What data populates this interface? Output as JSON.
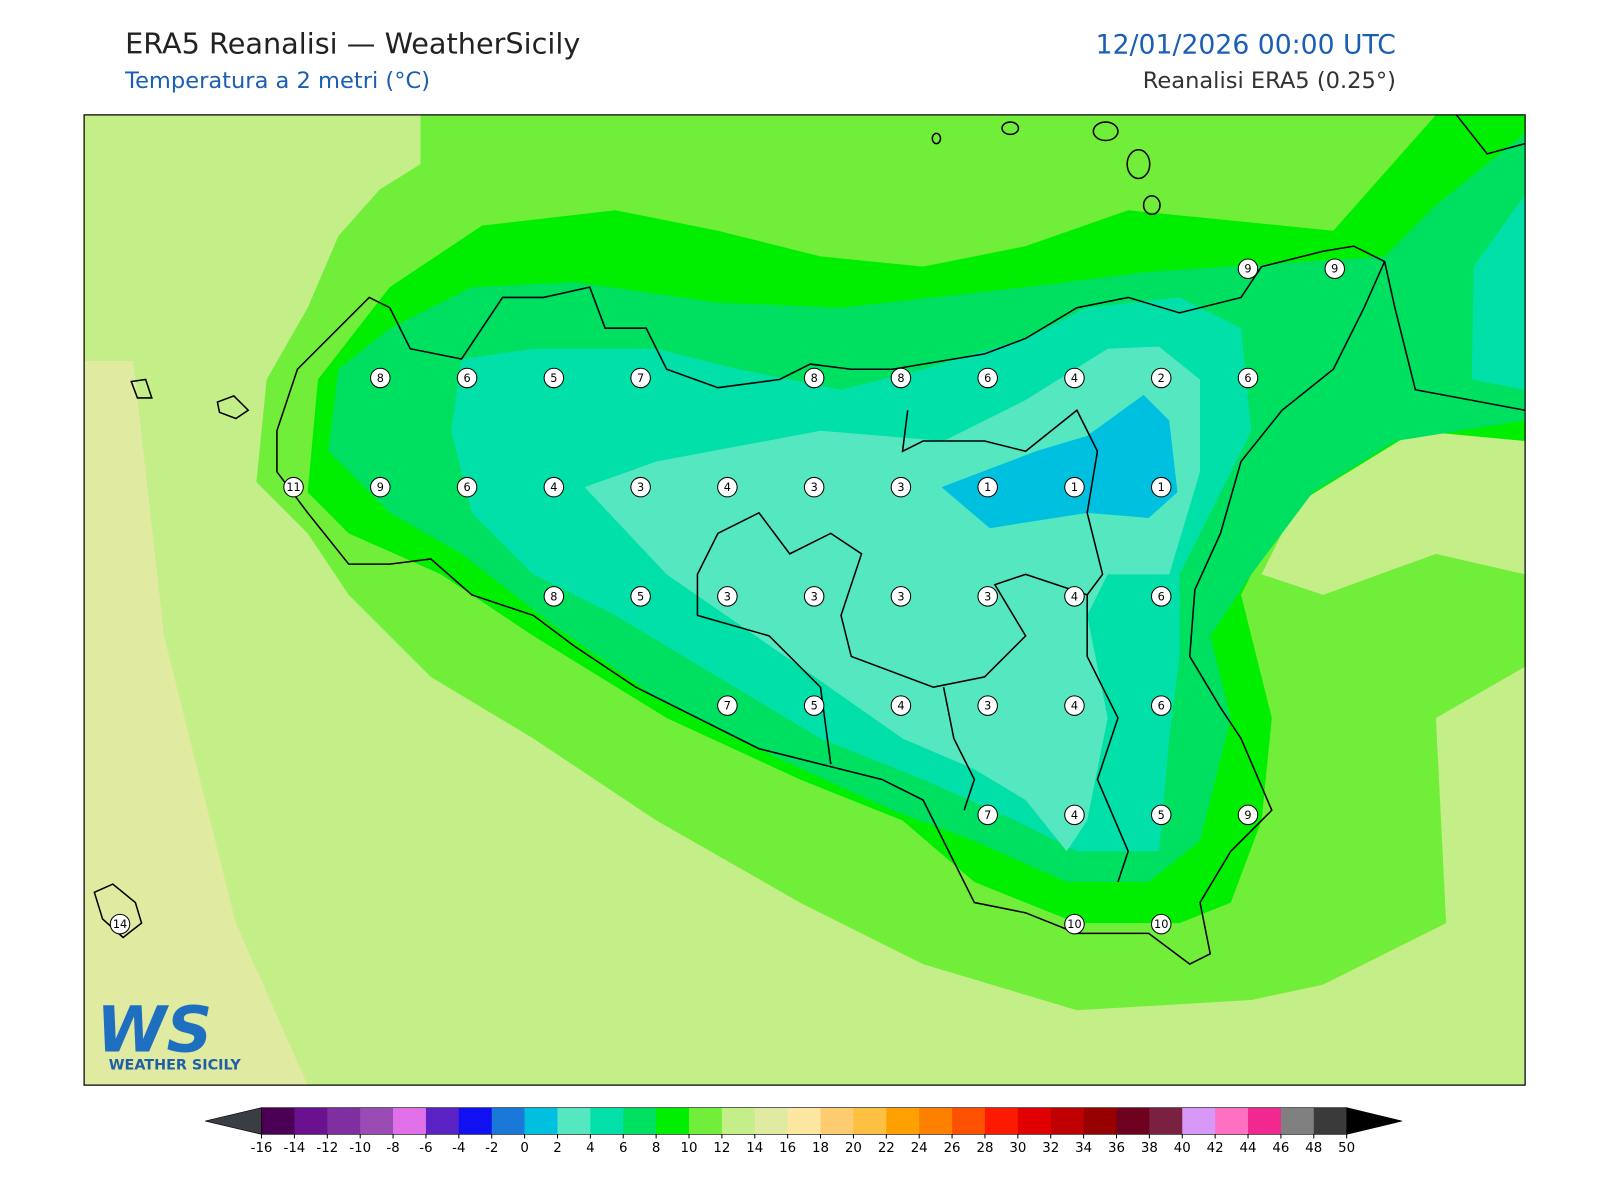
{
  "header": {
    "title": "ERA5 Reanalisi — WeatherSicily",
    "subtitle": "Temperatura a 2 metri (°C)",
    "date": "12/01/2026 00:00 UTC",
    "source": "Reanalisi ERA5 (0.25°)"
  },
  "stations": [
    9,
    9,
    8,
    6,
    5,
    7,
    8,
    8,
    6,
    4,
    2,
    6,
    11,
    9,
    6,
    4,
    3,
    4,
    3,
    3,
    1,
    1,
    1,
    8,
    5,
    3,
    3,
    3,
    3,
    4,
    6,
    7,
    5,
    4,
    3,
    4,
    6,
    7,
    4,
    5,
    9,
    14,
    10,
    10
  ],
  "logo": {
    "mark": "WS",
    "name": "WEATHER SICILY"
  },
  "colorbar": {
    "ticks": [
      -16,
      -14,
      -12,
      -10,
      -8,
      -6,
      -4,
      -2,
      0,
      2,
      4,
      6,
      8,
      10,
      12,
      14,
      16,
      18,
      20,
      22,
      24,
      26,
      28,
      30,
      32,
      34,
      36,
      38,
      40,
      42,
      44,
      46,
      48,
      50
    ],
    "colors": [
      "#4b0055",
      "#6a1190",
      "#7f2fa0",
      "#9a4cb4",
      "#e070e8",
      "#5a22c4",
      "#1010f0",
      "#1a78d8",
      "#00c0e0",
      "#55e8c0",
      "#00e0a8",
      "#00e060",
      "#00ee00",
      "#70ee3a",
      "#c4ee88",
      "#e0eaa0",
      "#fde6a0",
      "#fdcc70",
      "#fdc040",
      "#fda000",
      "#fd8000",
      "#fd5000",
      "#fd1a00",
      "#e00000",
      "#c00000",
      "#960000",
      "#6e0020",
      "#7a2040",
      "#d898f8",
      "#ff70c0",
      "#f02890",
      "#808080",
      "#3a3a3a"
    ],
    "under": "#3a3d44",
    "over": "#000000"
  }
}
